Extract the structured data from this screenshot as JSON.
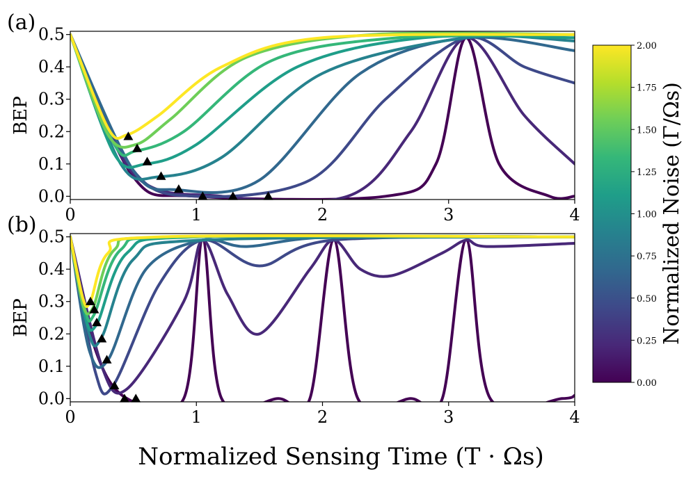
{
  "chart_data": [
    {
      "type": "line",
      "panel": "(a)",
      "xlabel": "",
      "ylabel": "BEP",
      "xlim": [
        0,
        4
      ],
      "ylim": [
        -0.01,
        0.51
      ],
      "x_ticks": [
        "0",
        "1",
        "2",
        "3",
        "4"
      ],
      "y_ticks": [
        "0.0",
        "0.1",
        "0.2",
        "0.3",
        "0.4",
        "0.5"
      ],
      "series": [
        {
          "name": "Γ/Ωs = 0.00",
          "color": "#440154",
          "x": [
            0,
            0.5,
            1.0,
            2.5,
            2.9,
            3.14,
            3.4,
            3.8,
            4.0
          ],
          "y": [
            0.5,
            0.06,
            0.0,
            0.0,
            0.1,
            0.49,
            0.1,
            0.0,
            0.0
          ]
        },
        {
          "name": "Γ/Ωs = 0.25",
          "color": "#482878",
          "x": [
            0,
            0.5,
            1.2,
            2.2,
            2.7,
            3.14,
            3.6,
            4.0
          ],
          "y": [
            0.5,
            0.07,
            0.0,
            0.0,
            0.2,
            0.49,
            0.25,
            0.1
          ]
        },
        {
          "name": "Γ/Ωs = 0.50",
          "color": "#3e4989",
          "x": [
            0,
            0.5,
            1.0,
            1.9,
            2.5,
            3.14,
            3.6,
            4.0
          ],
          "y": [
            0.5,
            0.08,
            0.0,
            0.05,
            0.3,
            0.49,
            0.4,
            0.35
          ]
        },
        {
          "name": "Γ/Ωs = 0.75",
          "color": "#31688e",
          "x": [
            0,
            0.5,
            0.85,
            1.5,
            2.3,
            3.14,
            4.0
          ],
          "y": [
            0.5,
            0.08,
            0.02,
            0.05,
            0.38,
            0.49,
            0.45
          ]
        },
        {
          "name": "Γ/Ωs = 1.00",
          "color": "#26828e",
          "x": [
            0,
            0.4,
            0.7,
            1.2,
            2.0,
            3.14,
            4.0
          ],
          "y": [
            0.5,
            0.1,
            0.06,
            0.12,
            0.38,
            0.49,
            0.48
          ]
        },
        {
          "name": "Γ/Ωs = 1.25",
          "color": "#1f9e89",
          "x": [
            0,
            0.35,
            0.6,
            1.0,
            1.8,
            2.8,
            4.0
          ],
          "y": [
            0.5,
            0.13,
            0.1,
            0.16,
            0.4,
            0.49,
            0.49
          ]
        },
        {
          "name": "Γ/Ωs = 1.50",
          "color": "#35b779",
          "x": [
            0,
            0.35,
            0.52,
            0.9,
            1.6,
            2.6,
            4.0
          ],
          "y": [
            0.5,
            0.16,
            0.14,
            0.2,
            0.42,
            0.49,
            0.5
          ]
        },
        {
          "name": "Γ/Ωs = 1.75",
          "color": "#6ece58",
          "x": [
            0,
            0.3,
            0.52,
            0.8,
            1.4,
            2.4,
            4.0
          ],
          "y": [
            0.5,
            0.19,
            0.16,
            0.24,
            0.43,
            0.5,
            0.5
          ]
        },
        {
          "name": "Γ/Ωs = 2.00",
          "color": "#fde725",
          "x": [
            0,
            0.3,
            0.45,
            0.7,
            1.2,
            2.0,
            4.0
          ],
          "y": [
            0.5,
            0.21,
            0.19,
            0.25,
            0.4,
            0.49,
            0.5
          ]
        }
      ],
      "minima_markers": {
        "x": [
          0.46,
          0.53,
          0.61,
          0.72,
          0.86,
          1.05,
          1.29,
          1.57
        ],
        "y": [
          0.185,
          0.148,
          0.107,
          0.062,
          0.022,
          0.0,
          0.0,
          0.0
        ]
      }
    },
    {
      "type": "line",
      "panel": "(b)",
      "xlabel": "Normalized Sensing Time (T · Ωs)",
      "ylabel": "BEP",
      "xlim": [
        0,
        4
      ],
      "ylim": [
        -0.01,
        0.51
      ],
      "x_ticks": [
        "0",
        "1",
        "2",
        "3",
        "4"
      ],
      "y_ticks": [
        "0.0",
        "0.1",
        "0.2",
        "0.3",
        "0.4",
        "0.5"
      ],
      "series": [
        {
          "name": "Γ/Ωs = 0.00",
          "color": "#440154",
          "x": [
            0,
            0.2,
            0.45,
            0.9,
            1.05,
            1.2,
            1.65,
            1.9,
            2.09,
            2.28,
            2.7,
            2.95,
            3.14,
            3.33,
            3.9,
            4.0
          ],
          "y": [
            0.5,
            0.15,
            0.0,
            0.0,
            0.49,
            0.0,
            0.0,
            0.0,
            0.49,
            0.0,
            0.0,
            0.0,
            0.49,
            0.0,
            0.0,
            0.01
          ]
        },
        {
          "name": "Γ/Ωs = 0.25",
          "color": "#482878",
          "x": [
            0,
            0.25,
            0.45,
            0.9,
            1.05,
            1.25,
            1.5,
            1.9,
            2.09,
            2.3,
            2.55,
            2.95,
            3.14,
            3.3,
            4.0
          ],
          "y": [
            0.5,
            0.1,
            0.03,
            0.3,
            0.49,
            0.32,
            0.2,
            0.4,
            0.49,
            0.4,
            0.38,
            0.45,
            0.49,
            0.47,
            0.48
          ]
        },
        {
          "name": "Γ/Ωs = 0.50",
          "color": "#3e4989",
          "x": [
            0,
            0.2,
            0.34,
            0.7,
            1.05,
            1.5,
            2.09,
            4.0
          ],
          "y": [
            0.5,
            0.08,
            0.04,
            0.35,
            0.49,
            0.41,
            0.49,
            0.5
          ]
        },
        {
          "name": "Γ/Ωs = 0.75",
          "color": "#31688e",
          "x": [
            0,
            0.15,
            0.3,
            0.6,
            1.05,
            1.4,
            2.09,
            4.0
          ],
          "y": [
            0.5,
            0.15,
            0.12,
            0.4,
            0.49,
            0.47,
            0.5,
            0.5
          ]
        },
        {
          "name": "Γ/Ωs = 1.00",
          "color": "#26828e",
          "x": [
            0,
            0.15,
            0.25,
            0.5,
            1.05,
            4.0
          ],
          "y": [
            0.5,
            0.2,
            0.19,
            0.43,
            0.49,
            0.5
          ]
        },
        {
          "name": "Γ/Ωs = 1.25",
          "color": "#1f9e89",
          "x": [
            0,
            0.12,
            0.21,
            0.45,
            1.0,
            4.0
          ],
          "y": [
            0.5,
            0.25,
            0.23,
            0.45,
            0.5,
            0.5
          ]
        },
        {
          "name": "Γ/Ωs = 1.50",
          "color": "#35b779",
          "x": [
            0,
            0.12,
            0.19,
            0.4,
            0.9,
            4.0
          ],
          "y": [
            0.5,
            0.27,
            0.26,
            0.46,
            0.5,
            0.5
          ]
        },
        {
          "name": "Γ/Ωs = 1.75",
          "color": "#6ece58",
          "x": [
            0,
            0.1,
            0.18,
            0.35,
            0.8,
            4.0
          ],
          "y": [
            0.5,
            0.29,
            0.28,
            0.46,
            0.5,
            0.5
          ]
        },
        {
          "name": "Γ/Ωs = 2.00",
          "color": "#fde725",
          "x": [
            0,
            0.1,
            0.16,
            0.3,
            0.7,
            4.0
          ],
          "y": [
            0.5,
            0.31,
            0.3,
            0.45,
            0.5,
            0.5
          ]
        }
      ],
      "minima_markers": {
        "x": [
          0.16,
          0.19,
          0.21,
          0.25,
          0.29,
          0.35,
          0.43,
          0.52
        ],
        "y": [
          0.3,
          0.275,
          0.235,
          0.185,
          0.12,
          0.04,
          0.0,
          0.0
        ]
      }
    }
  ],
  "colorbar": {
    "label": "Normalized Noise (Γ/Ωs)",
    "range": [
      0,
      2
    ],
    "ticks": [
      "0.00",
      "0.25",
      "0.50",
      "0.75",
      "1.00",
      "1.25",
      "1.50",
      "1.75",
      "2.00"
    ],
    "colors": [
      "#440154",
      "#482878",
      "#3e4989",
      "#31688e",
      "#26828e",
      "#1f9e89",
      "#35b779",
      "#6ece58",
      "#b5de2b",
      "#fde725"
    ]
  }
}
